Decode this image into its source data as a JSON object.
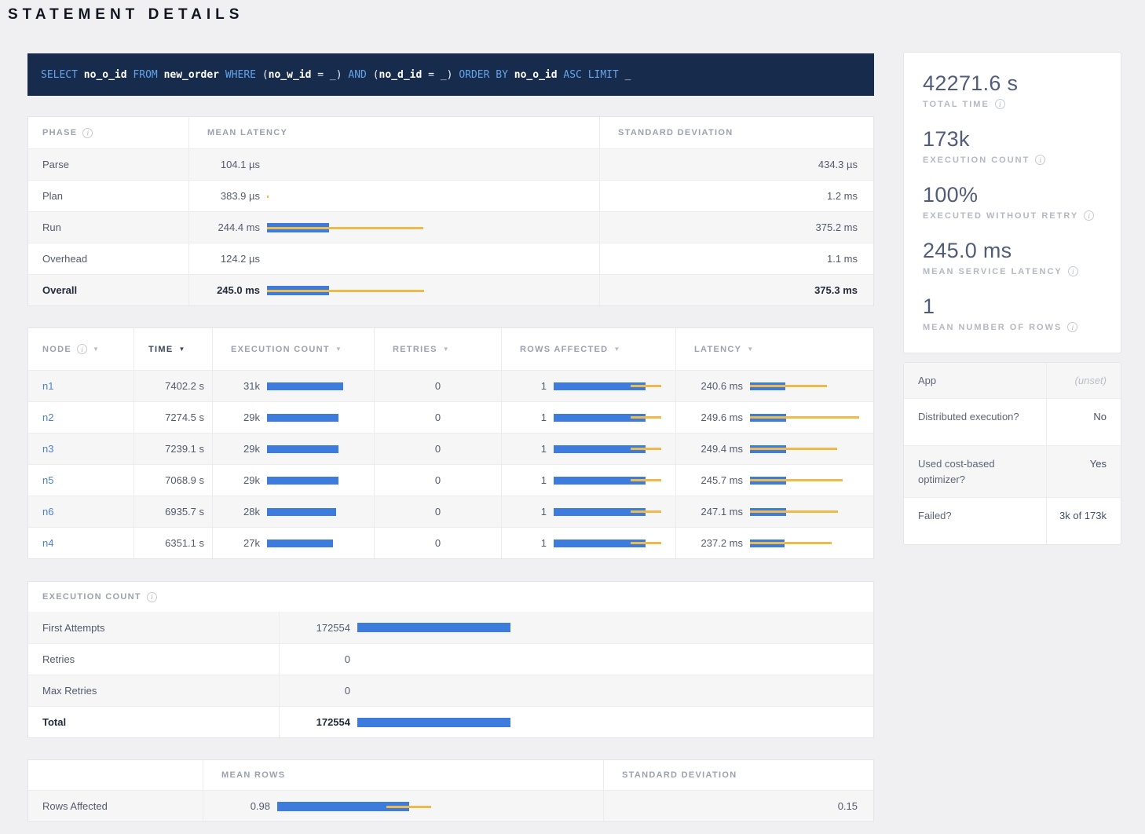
{
  "title": "STATEMENT DETAILS",
  "colors": {
    "bar_blue": "#3d7bdc",
    "bar_yellow": "#eebb4b",
    "link_blue": "#4a80d6",
    "sql_bg": "#172b4d"
  },
  "sql": {
    "tokens": [
      {
        "t": "SELECT",
        "c": "kw"
      },
      {
        "t": "no_o_id",
        "c": "id"
      },
      {
        "t": "FROM",
        "c": "kw"
      },
      {
        "t": "new_order",
        "c": "id"
      },
      {
        "t": "WHERE",
        "c": "kw"
      },
      {
        "t": "(",
        "c": "pl"
      },
      {
        "t": "no_w_id",
        "c": "id",
        "g": 1
      },
      {
        "t": "=",
        "c": "pl"
      },
      {
        "t": "_",
        "c": "pl"
      },
      {
        "t": ")",
        "c": "pl",
        "g": 1
      },
      {
        "t": "AND",
        "c": "kw"
      },
      {
        "t": "(",
        "c": "pl"
      },
      {
        "t": "no_d_id",
        "c": "id",
        "g": 1
      },
      {
        "t": "=",
        "c": "pl"
      },
      {
        "t": "_",
        "c": "pl"
      },
      {
        "t": ")",
        "c": "pl",
        "g": 1
      },
      {
        "t": "ORDER BY",
        "c": "kw"
      },
      {
        "t": "no_o_id",
        "c": "id"
      },
      {
        "t": "ASC",
        "c": "kw"
      },
      {
        "t": "LIMIT",
        "c": "kw"
      },
      {
        "t": "_",
        "c": "pl"
      }
    ]
  },
  "phase_table": {
    "headers": {
      "phase": "PHASE",
      "mean_latency": "MEAN LATENCY",
      "std_dev": "STANDARD DEVIATION"
    },
    "rows": [
      {
        "phase": "Parse",
        "mean": "104.1 µs",
        "std": "434.3 µs",
        "bold": false,
        "bar": 0,
        "w0": 0,
        "w1": 0
      },
      {
        "phase": "Plan",
        "mean": "383.9 µs",
        "std": "1.2 ms",
        "bold": false,
        "bar": 0,
        "w0": 0,
        "w1": 0.011
      },
      {
        "phase": "Run",
        "mean": "244.4 ms",
        "std": "375.2 ms",
        "bold": false,
        "bar": 0.394,
        "w0": 0,
        "w1": 0.995
      },
      {
        "phase": "Overhead",
        "mean": "124.2 µs",
        "std": "1.1 ms",
        "bold": false,
        "bar": 0,
        "w0": 0,
        "w1": 0
      },
      {
        "phase": "Overall",
        "mean": "245.0 ms",
        "std": "375.3 ms",
        "bold": true,
        "bar": 0.395,
        "w0": 0,
        "w1": 1.0
      }
    ]
  },
  "node_table": {
    "headers": {
      "node": "NODE",
      "time": "TIME",
      "exec_count": "EXECUTION COUNT",
      "retries": "RETRIES",
      "rows_affected": "ROWS AFFECTED",
      "latency": "LATENCY"
    },
    "sorted_by": "TIME",
    "rows": [
      {
        "node": "n1",
        "time": "7402.2 s",
        "count": "31k",
        "count_bar": 1.0,
        "retries": "0",
        "rows": "1",
        "rows_bar": 0.835,
        "rows_w0": 0.7,
        "rows_w1": 0.98,
        "latency": "240.6 ms",
        "lat_bar": 0.32,
        "lat_w0": 0,
        "lat_w1": 0.7
      },
      {
        "node": "n2",
        "time": "7274.5 s",
        "count": "29k",
        "count_bar": 0.935,
        "retries": "0",
        "rows": "1",
        "rows_bar": 0.835,
        "rows_w0": 0.7,
        "rows_w1": 0.98,
        "latency": "249.6 ms",
        "lat_bar": 0.33,
        "lat_w0": 0,
        "lat_w1": 0.99
      },
      {
        "node": "n3",
        "time": "7239.1 s",
        "count": "29k",
        "count_bar": 0.935,
        "retries": "0",
        "rows": "1",
        "rows_bar": 0.835,
        "rows_w0": 0.7,
        "rows_w1": 0.98,
        "latency": "249.4 ms",
        "lat_bar": 0.33,
        "lat_w0": 0,
        "lat_w1": 0.79
      },
      {
        "node": "n5",
        "time": "7068.9 s",
        "count": "29k",
        "count_bar": 0.935,
        "retries": "0",
        "rows": "1",
        "rows_bar": 0.835,
        "rows_w0": 0.7,
        "rows_w1": 0.98,
        "latency": "245.7 ms",
        "lat_bar": 0.325,
        "lat_w0": 0,
        "lat_w1": 0.84
      },
      {
        "node": "n6",
        "time": "6935.7 s",
        "count": "28k",
        "count_bar": 0.903,
        "retries": "0",
        "rows": "1",
        "rows_bar": 0.835,
        "rows_w0": 0.7,
        "rows_w1": 0.98,
        "latency": "247.1 ms",
        "lat_bar": 0.327,
        "lat_w0": 0,
        "lat_w1": 0.8
      },
      {
        "node": "n4",
        "time": "6351.1 s",
        "count": "27k",
        "count_bar": 0.871,
        "retries": "0",
        "rows": "1",
        "rows_bar": 0.835,
        "rows_w0": 0.7,
        "rows_w1": 0.98,
        "latency": "237.2 ms",
        "lat_bar": 0.315,
        "lat_w0": 0,
        "lat_w1": 0.74
      }
    ]
  },
  "execution_count_table": {
    "title": "EXECUTION COUNT",
    "rows": [
      {
        "label": "First Attempts",
        "value": "172554",
        "bar": 0.975,
        "bold": false
      },
      {
        "label": "Retries",
        "value": "0",
        "bar": 0,
        "bold": false
      },
      {
        "label": "Max Retries",
        "value": "0",
        "bar": 0,
        "bold": false
      },
      {
        "label": "Total",
        "value": "172554",
        "bar": 0.975,
        "bold": true
      }
    ]
  },
  "rows_affected_table": {
    "headers": {
      "mean_rows": "MEAN ROWS",
      "std_dev": "STANDARD DEVIATION"
    },
    "rows": [
      {
        "label": "Rows Affected",
        "mean": "0.98",
        "bar": 0.82,
        "w0": 0.68,
        "w1": 0.955,
        "std": "0.15"
      }
    ]
  },
  "summary": {
    "items": [
      {
        "value": "42271.6 s",
        "label": "TOTAL TIME"
      },
      {
        "value": "173k",
        "label": "EXECUTION COUNT"
      },
      {
        "value": "100%",
        "label": "EXECUTED WITHOUT RETRY"
      },
      {
        "value": "245.0 ms",
        "label": "MEAN SERVICE LATENCY"
      },
      {
        "value": "1",
        "label": "MEAN NUMBER OF ROWS"
      }
    ]
  },
  "facts": {
    "rows": [
      {
        "label": "App",
        "value": "(unset)",
        "muted": true
      },
      {
        "label": "Distributed execution?",
        "value": "No",
        "muted": false
      },
      {
        "label": "Used cost-based optimizer?",
        "value": "Yes",
        "muted": false
      },
      {
        "label": "Failed?",
        "value": "3k of 173k",
        "muted": false
      }
    ]
  }
}
